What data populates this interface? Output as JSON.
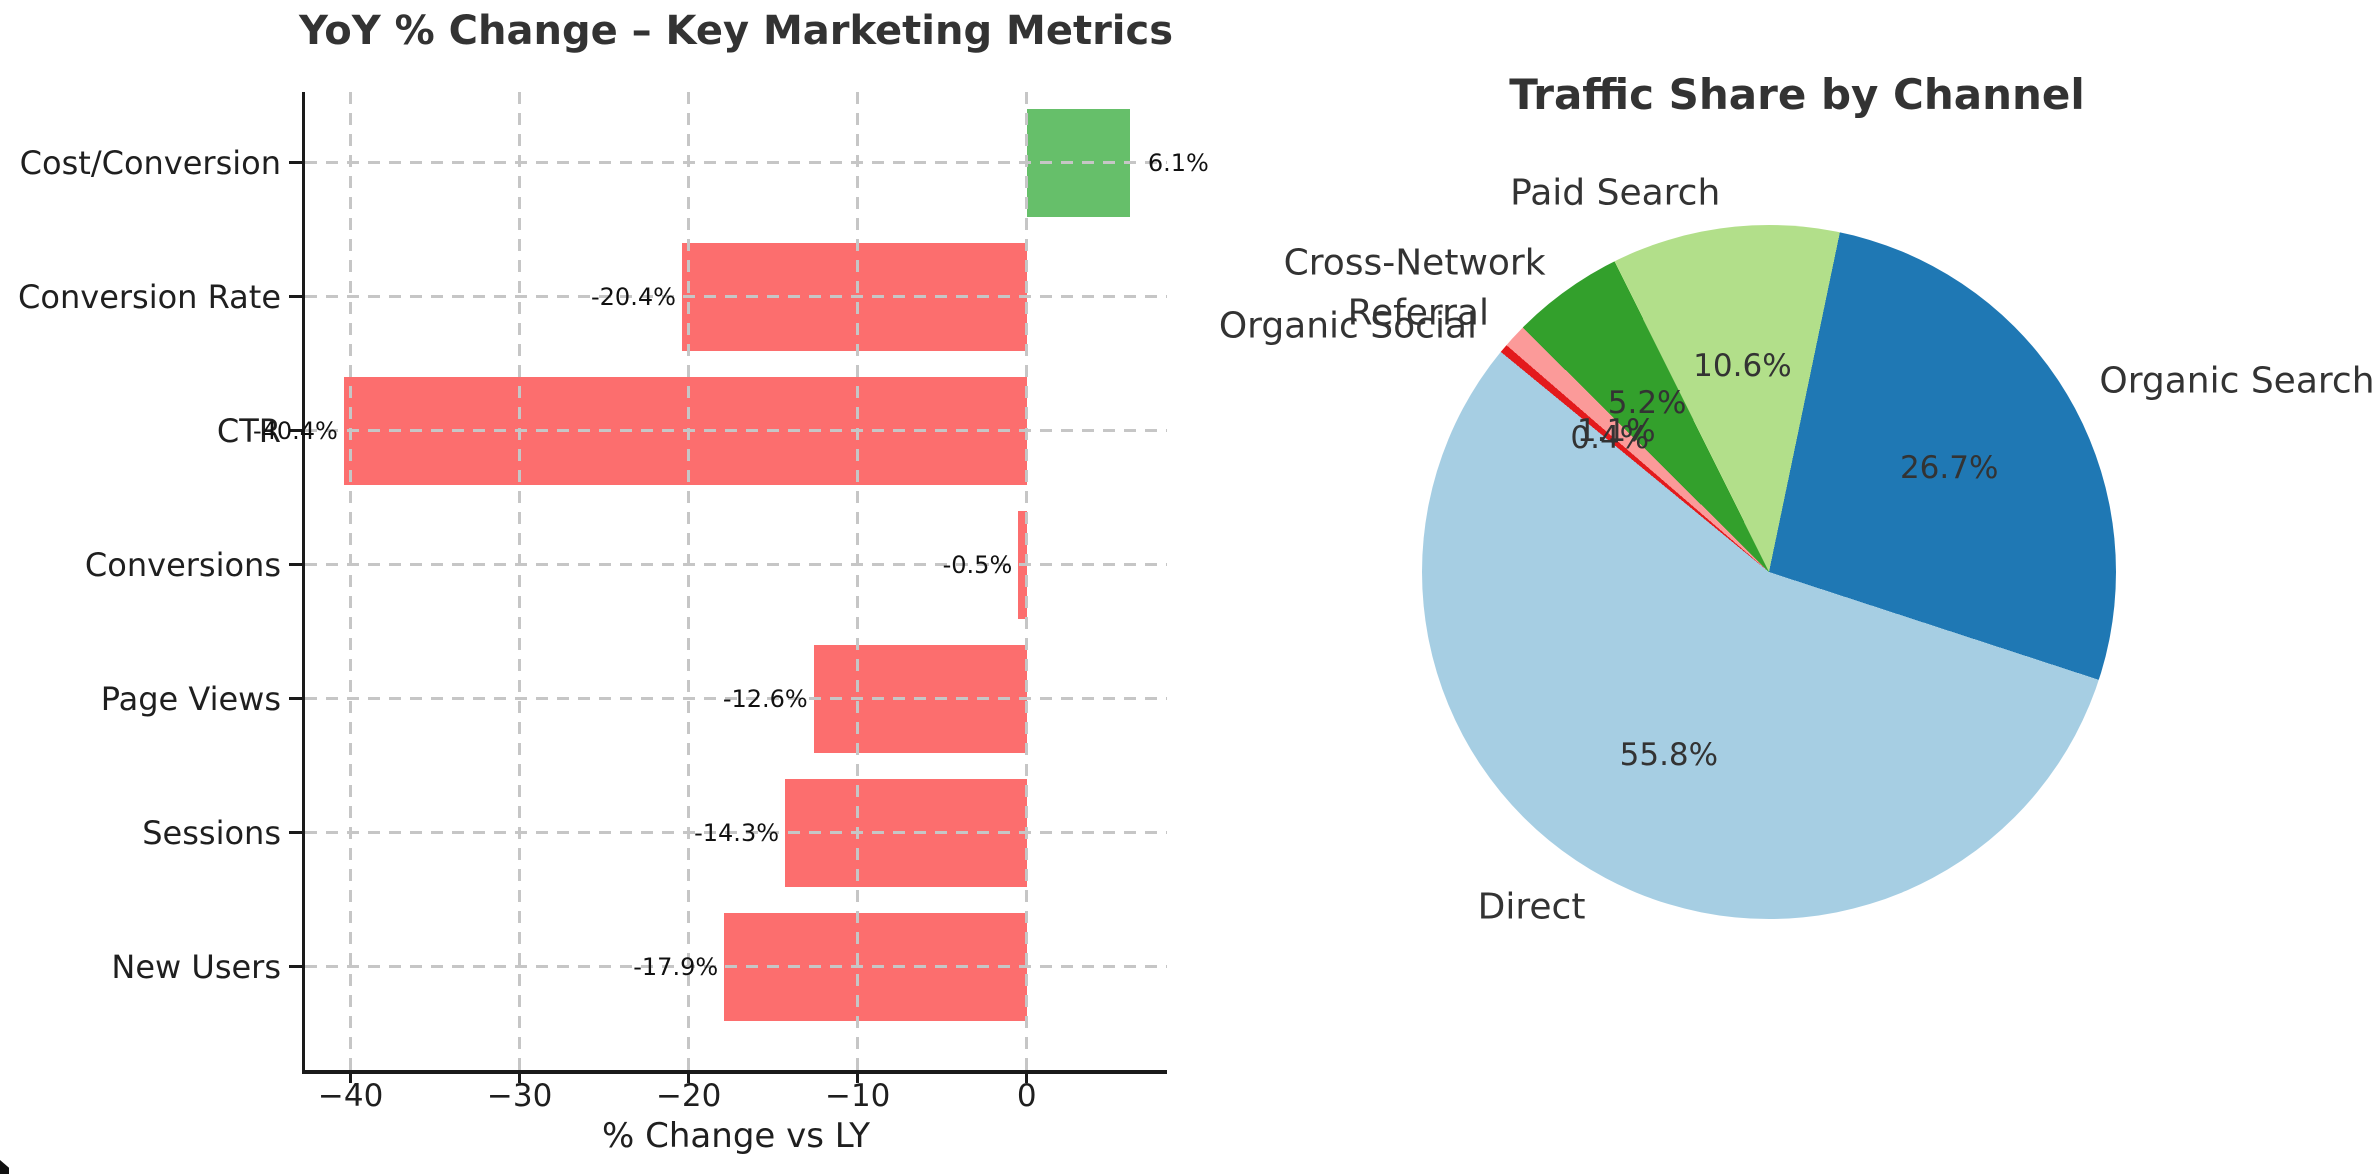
{
  "chart_data": [
    {
      "type": "bar",
      "orientation": "horizontal",
      "title": "YoY % Change – Key Marketing Metrics",
      "xlabel": "% Change vs LY",
      "categories": [
        "Cost/Conversion",
        "Conversion Rate",
        "CTR",
        "Conversions",
        "Page Views",
        "Sessions",
        "New Users"
      ],
      "values": [
        6.1,
        -20.4,
        -40.4,
        -0.5,
        -12.6,
        -14.3,
        -17.9
      ],
      "value_labels": [
        "6.1%",
        "-20.4%",
        "-40.4%",
        "-0.5%",
        "-12.6%",
        "-14.3%",
        "-17.9%"
      ],
      "xlim": [
        -42.7,
        8.3
      ],
      "x_ticks": [
        {
          "value": -40,
          "label": "−40"
        },
        {
          "value": -30,
          "label": "−30"
        },
        {
          "value": -20,
          "label": "−20"
        },
        {
          "value": -10,
          "label": "−10"
        },
        {
          "value": 0,
          "label": "0"
        }
      ],
      "grid": true,
      "grid_style": "dashed",
      "colors": {
        "positive_bar": "#66bf6a",
        "negative_bar": "#fc6e6e",
        "grid_line": "#c6c6c6",
        "axis_line": "#1a1a1a",
        "tick_text": "#1f1f1f",
        "title_text": "#333333"
      }
    },
    {
      "type": "pie",
      "title": "Traffic Share by Channel",
      "start_angle_deg": -18.1,
      "direction": "counterclockwise",
      "label_distance": 1.1,
      "pct_distance": 0.6,
      "slices": [
        {
          "label": "Organic Search",
          "pct": 26.7,
          "pct_label": "26.7%",
          "color": "#1f78b4"
        },
        {
          "label": "Paid Search",
          "pct": 10.6,
          "pct_label": "10.6%",
          "color": "#b2df8a"
        },
        {
          "label": "Cross-Network",
          "pct": 5.2,
          "pct_label": "5.2%",
          "color": "#33a02c"
        },
        {
          "label": "Referral",
          "pct": 1.1,
          "pct_label": "1.1%",
          "color": "#fb9a99"
        },
        {
          "label": "Organic Social",
          "pct": 0.4,
          "pct_label": "0.4%",
          "color": "#e31a1c"
        },
        {
          "label": "Direct",
          "pct": 55.8,
          "pct_label": "55.8%",
          "color": "#a6cee3"
        }
      ],
      "colors": {
        "label_text": "#333333",
        "pct_text": "#333333"
      }
    }
  ]
}
